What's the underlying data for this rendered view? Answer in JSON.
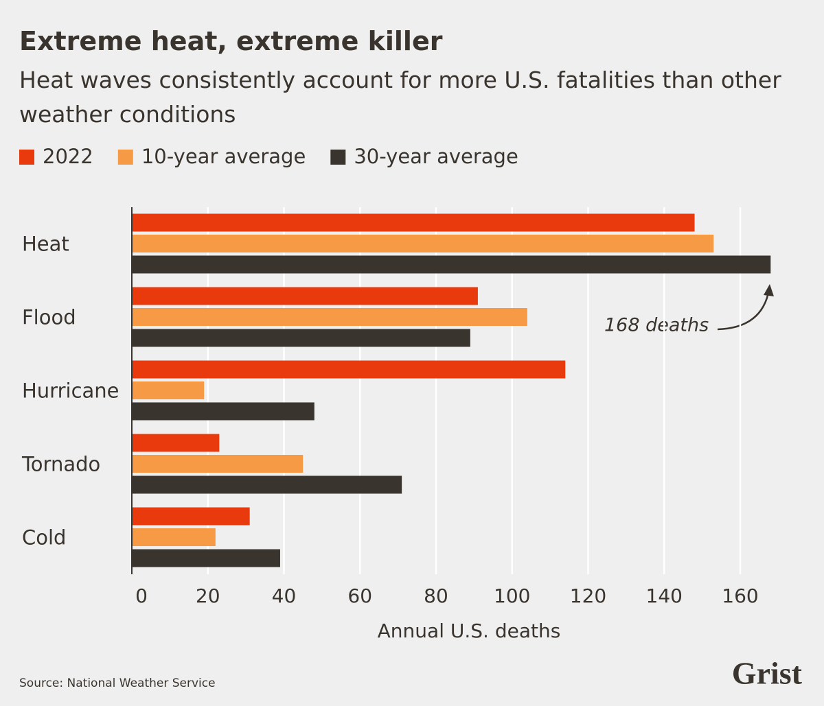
{
  "chart_data": {
    "type": "bar",
    "orientation": "horizontal",
    "title": "Extreme heat, extreme killer",
    "subtitle": "Heat waves consistently account for more U.S. fatalities than other weather conditions",
    "categories": [
      "Heat",
      "Flood",
      "Hurricane",
      "Tornado",
      "Cold"
    ],
    "series": [
      {
        "name": "2022",
        "color": "#e83a0c",
        "values": [
          148,
          91,
          114,
          23,
          31
        ]
      },
      {
        "name": "10-year average",
        "color": "#f79a46",
        "values": [
          153,
          104,
          19,
          45,
          22
        ]
      },
      {
        "name": "30-year average",
        "color": "#3a342e",
        "values": [
          168,
          89,
          48,
          71,
          39
        ]
      }
    ],
    "xlim": [
      0,
      170
    ],
    "xticks": [
      0,
      20,
      40,
      60,
      80,
      100,
      120,
      140,
      160
    ],
    "x_label": "Annual U.S. deaths",
    "annotation": "168 deaths",
    "grid": true,
    "legend": "top-left",
    "source": "Source: National Weather Service",
    "logo": "Grist"
  }
}
